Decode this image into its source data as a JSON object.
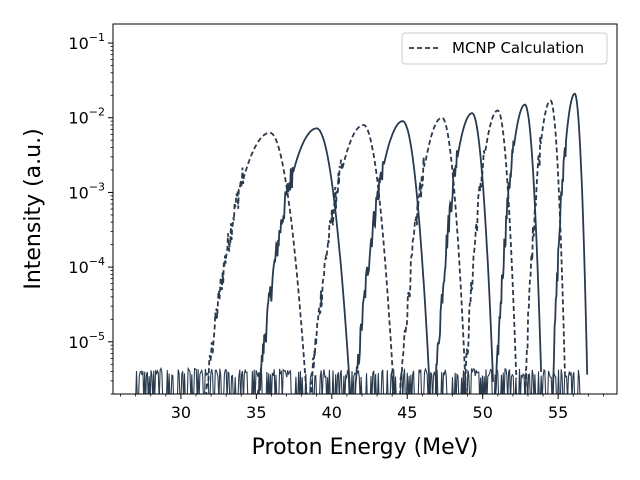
{
  "chart_data": {
    "type": "line",
    "title": "",
    "xlabel": "Proton Energy (MeV)",
    "ylabel": "Intensity (a.u.)",
    "xlim": [
      25.5,
      58.9
    ],
    "ylim": [
      2e-06,
      0.18
    ],
    "yscale": "log",
    "x_ticks": [
      30,
      35,
      40,
      45,
      50,
      55
    ],
    "y_ticks": [
      {
        "value": 1e-05,
        "base": "10",
        "exp": "−5"
      },
      {
        "value": 0.0001,
        "base": "10",
        "exp": "−4"
      },
      {
        "value": 0.001,
        "base": "10",
        "exp": "−3"
      },
      {
        "value": 0.01,
        "base": "10",
        "exp": "−2"
      },
      {
        "value": 0.1,
        "base": "10",
        "exp": "−1"
      }
    ],
    "grid": false,
    "legend": {
      "position": "top-right",
      "entries": [
        "MCNP Calculation"
      ]
    },
    "line_color": "#2a3a4d",
    "noise_floor": 2e-06,
    "noise_range": [
      27.0,
      56.5
    ],
    "peaks": [
      {
        "x": 35.9,
        "y": 0.0063,
        "style": "dashed",
        "width": 1.1
      },
      {
        "x": 39.0,
        "y": 0.0072,
        "style": "solid",
        "width": 1.0
      },
      {
        "x": 42.1,
        "y": 0.008,
        "style": "dashed",
        "width": 0.9
      },
      {
        "x": 44.7,
        "y": 0.009,
        "style": "solid",
        "width": 0.8
      },
      {
        "x": 47.3,
        "y": 0.01,
        "style": "dashed",
        "width": 0.7
      },
      {
        "x": 49.3,
        "y": 0.0115,
        "style": "solid",
        "width": 0.62
      },
      {
        "x": 51.0,
        "y": 0.0125,
        "style": "dashed",
        "width": 0.55
      },
      {
        "x": 52.8,
        "y": 0.015,
        "style": "solid",
        "width": 0.48
      },
      {
        "x": 54.5,
        "y": 0.017,
        "style": "dashed",
        "width": 0.42
      },
      {
        "x": 56.1,
        "y": 0.021,
        "style": "solid",
        "width": 0.36
      }
    ]
  }
}
